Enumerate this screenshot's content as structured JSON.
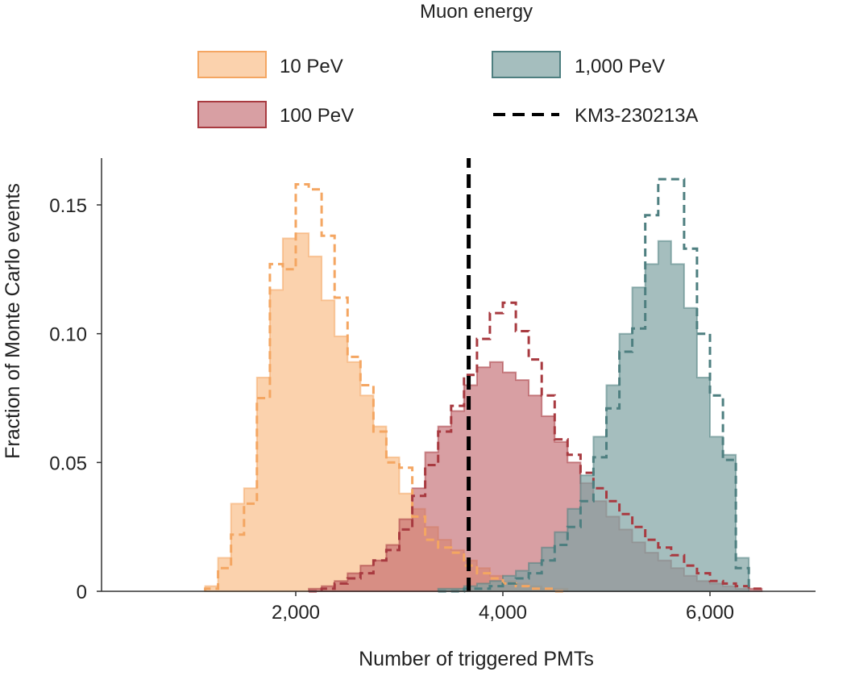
{
  "chart_data": {
    "type": "histogram",
    "xlabel": "Number of triggered PMTs",
    "ylabel": "Fraction of Monte Carlo events",
    "xlim": [
      0,
      7100
    ],
    "ylim": [
      0,
      0.168
    ],
    "xticks": [
      2000,
      4000,
      6000
    ],
    "xtick_labels": [
      "2,000",
      "4,000",
      "6,000"
    ],
    "yticks": [
      0,
      0.05,
      0.1,
      0.15
    ],
    "ytick_labels": [
      "0",
      "0.05",
      "0.10",
      "0.15"
    ],
    "bin_width": 125,
    "legend": {
      "title": "Muon energy",
      "entries": [
        {
          "label": "10 PeV",
          "kind": "patch",
          "series": "10pev"
        },
        {
          "label": "1,000 PeV",
          "kind": "patch",
          "series": "1000pev"
        },
        {
          "label": "100 PeV",
          "kind": "patch",
          "series": "100pev"
        },
        {
          "label": "KM3-230213A",
          "kind": "dashed-line",
          "series": "event"
        }
      ]
    },
    "event_line": {
      "name": "KM3-230213A",
      "x": 3670,
      "color": "#000000"
    },
    "series": [
      {
        "id": "10pev",
        "name": "10 PeV",
        "fill": "#f9c08e",
        "edge": "#f4a662",
        "fill_opacity": 0.72,
        "bin_start": 1125,
        "filled": [
          0.002,
          0.013,
          0.034,
          0.04,
          0.083,
          0.117,
          0.137,
          0.139,
          0.13,
          0.113,
          0.099,
          0.089,
          0.076,
          0.064,
          0.052,
          0.038,
          0.032,
          0.025,
          0.02,
          0.016,
          0.012,
          0.009,
          0.006,
          0.004,
          0.003,
          0.002,
          0.001,
          0.001
        ],
        "dashed": [
          0.001,
          0.009,
          0.022,
          0.034,
          0.075,
          0.127,
          0.125,
          0.158,
          0.156,
          0.138,
          0.114,
          0.091,
          0.08,
          0.062,
          0.05,
          0.048,
          0.029,
          0.02,
          0.017,
          0.015,
          0.01,
          0.007,
          0.005,
          0.003,
          0.002,
          0.001,
          0.001,
          0.0
        ]
      },
      {
        "id": "100pev",
        "name": "100 PeV",
        "fill": "#c0646a",
        "edge": "#a83a40",
        "fill_opacity": 0.62,
        "bin_start": 2125,
        "filled": [
          0.001,
          0.002,
          0.004,
          0.007,
          0.01,
          0.012,
          0.018,
          0.028,
          0.04,
          0.054,
          0.064,
          0.07,
          0.08,
          0.087,
          0.089,
          0.085,
          0.082,
          0.076,
          0.068,
          0.058,
          0.05,
          0.042,
          0.035,
          0.029,
          0.024,
          0.019,
          0.015,
          0.012,
          0.009,
          0.006,
          0.004,
          0.003,
          0.002,
          0.001,
          0.001
        ],
        "dashed": [
          0.0,
          0.001,
          0.003,
          0.005,
          0.007,
          0.012,
          0.016,
          0.024,
          0.037,
          0.049,
          0.062,
          0.072,
          0.084,
          0.098,
          0.108,
          0.112,
          0.101,
          0.09,
          0.076,
          0.059,
          0.053,
          0.046,
          0.04,
          0.035,
          0.03,
          0.025,
          0.02,
          0.017,
          0.014,
          0.01,
          0.007,
          0.004,
          0.003,
          0.002,
          0.001
        ]
      },
      {
        "id": "1000pev",
        "name": "1,000 PeV",
        "fill": "#7fa3a3",
        "edge": "#4e7f80",
        "fill_opacity": 0.7,
        "bin_start": 3375,
        "filled": [
          0.001,
          0.001,
          0.002,
          0.003,
          0.004,
          0.006,
          0.008,
          0.011,
          0.017,
          0.023,
          0.032,
          0.045,
          0.06,
          0.08,
          0.1,
          0.118,
          0.127,
          0.136,
          0.127,
          0.11,
          0.083,
          0.06,
          0.053,
          0.013
        ],
        "dashed": [
          0.0,
          0.0,
          0.001,
          0.001,
          0.002,
          0.003,
          0.005,
          0.007,
          0.012,
          0.018,
          0.025,
          0.035,
          0.052,
          0.071,
          0.093,
          0.102,
          0.146,
          0.16,
          0.16,
          0.133,
          0.1,
          0.076,
          0.051,
          0.009
        ]
      }
    ]
  }
}
